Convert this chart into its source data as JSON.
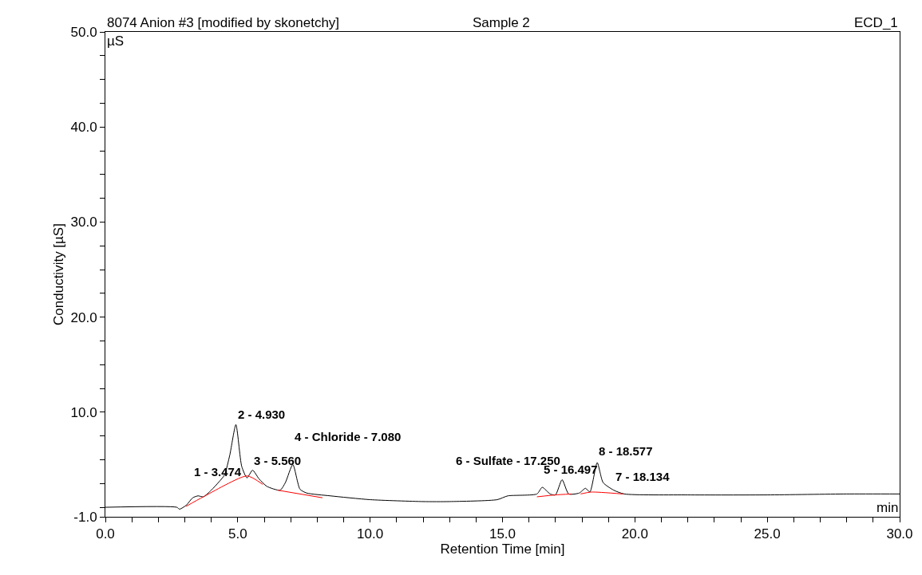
{
  "chart_data": {
    "type": "line",
    "title": "8074 Anion #3 [modified by skonetchy]",
    "subtitle": "Sample 2",
    "xlabel": "Retention Time [min]",
    "ylabel": "Conductivity [µS]",
    "x": [
      0,
      2.7,
      2.8,
      3.05,
      3.3,
      3.5,
      3.7,
      4.0,
      4.3,
      4.5,
      4.7,
      4.93,
      5.15,
      5.35,
      5.56,
      5.8,
      6.1,
      6.6,
      6.8,
      7.08,
      7.35,
      7.6,
      8.5,
      10,
      12,
      13,
      14.8,
      15.2,
      16.3,
      16.5,
      16.8,
      17.0,
      17.25,
      17.5,
      17.9,
      18.134,
      18.3,
      18.577,
      18.8,
      19.2,
      19.6,
      22,
      25,
      28,
      30
    ],
    "series": [
      {
        "color": "#000000",
        "values": [
          0,
          0,
          -0.2,
          0.2,
          1.0,
          1.2,
          1.1,
          1.8,
          2.7,
          3.4,
          5.5,
          8.7,
          4.3,
          3.1,
          3.9,
          3.0,
          2.2,
          1.8,
          2.6,
          4.5,
          1.9,
          1.5,
          1.2,
          0.8,
          0.6,
          0.6,
          0.8,
          1.2,
          1.4,
          2.1,
          1.4,
          1.3,
          2.9,
          1.4,
          1.5,
          2.0,
          1.6,
          4.7,
          2.6,
          1.8,
          1.4,
          1.3,
          1.3,
          1.4,
          1.4
        ]
      },
      {
        "color": "#ff0000",
        "x": [
          3.05,
          3.7,
          5.35,
          5.95,
          6.2,
          6.5,
          8.2,
          12,
          16.3,
          17.0,
          17.6,
          17.8,
          17.95,
          18.35,
          19.55
        ],
        "values": [
          0.1,
          1.1,
          3.3,
          2.4,
          null,
          1.8,
          1.0,
          null,
          1.1,
          1.3,
          1.4,
          null,
          1.4,
          1.6,
          1.4
        ]
      }
    ],
    "xlim": [
      0,
      30
    ],
    "ylim": [
      -1,
      50
    ],
    "xticks": [
      {
        "value": 0,
        "label": "0.0"
      },
      {
        "value": 1,
        "label": null
      },
      {
        "value": 2,
        "label": null
      },
      {
        "value": 3,
        "label": null
      },
      {
        "value": 4,
        "label": null
      },
      {
        "value": 5,
        "label": "5.0"
      },
      {
        "value": 6,
        "label": null
      },
      {
        "value": 7,
        "label": null
      },
      {
        "value": 8,
        "label": null
      },
      {
        "value": 9,
        "label": null
      },
      {
        "value": 10,
        "label": "10.0"
      },
      {
        "value": 11,
        "label": null
      },
      {
        "value": 12,
        "label": null
      },
      {
        "value": 13,
        "label": null
      },
      {
        "value": 14,
        "label": null
      },
      {
        "value": 15,
        "label": "15.0"
      },
      {
        "value": 16,
        "label": null
      },
      {
        "value": 17,
        "label": null
      },
      {
        "value": 18,
        "label": null
      },
      {
        "value": 19,
        "label": null
      },
      {
        "value": 20,
        "label": "20.0"
      },
      {
        "value": 21,
        "label": null
      },
      {
        "value": 22,
        "label": null
      },
      {
        "value": 23,
        "label": null
      },
      {
        "value": 24,
        "label": null
      },
      {
        "value": 25,
        "label": "25.0"
      },
      {
        "value": 26,
        "label": null
      },
      {
        "value": 27,
        "label": null
      },
      {
        "value": 28,
        "label": null
      },
      {
        "value": 29,
        "label": null
      },
      {
        "value": 30,
        "label": "30.0"
      }
    ],
    "yticks": [
      {
        "value": -1,
        "label": "-1.0"
      },
      {
        "value": 0,
        "label": null
      },
      {
        "value": 2.5,
        "label": null
      },
      {
        "value": 5,
        "label": null
      },
      {
        "value": 7.5,
        "label": null
      },
      {
        "value": 10,
        "label": "10.0"
      },
      {
        "value": 12.5,
        "label": null
      },
      {
        "value": 15,
        "label": null
      },
      {
        "value": 17.5,
        "label": null
      },
      {
        "value": 20,
        "label": "20.0"
      },
      {
        "value": 22.5,
        "label": null
      },
      {
        "value": 25,
        "label": null
      },
      {
        "value": 27.5,
        "label": null
      },
      {
        "value": 30,
        "label": "30.0"
      },
      {
        "value": 32.5,
        "label": null
      },
      {
        "value": 35,
        "label": null
      },
      {
        "value": 37.5,
        "label": null
      },
      {
        "value": 40,
        "label": "40.0"
      },
      {
        "value": 42.5,
        "label": null
      },
      {
        "value": 45,
        "label": null
      },
      {
        "value": 47.5,
        "label": null
      },
      {
        "value": 50,
        "label": "50.0"
      }
    ],
    "annotations": [
      "ECD_1",
      "µS",
      "min",
      {
        "text": "1 - 3.474",
        "x": 3.474,
        "y": 1.2
      },
      {
        "text": "2 - 4.930",
        "x": 4.93,
        "y": 8.7
      },
      {
        "text": "3 - 5.560",
        "x": 5.56,
        "y": 3.9
      },
      {
        "text": "4 - Chloride - 7.080",
        "x": 7.08,
        "y": 4.5
      },
      {
        "text": "5 - 16.497",
        "x": 16.497,
        "y": 2.1
      },
      {
        "text": "6 - Sulfate - 17.250",
        "x": 17.25,
        "y": 2.9
      },
      {
        "text": "7 - 18.134",
        "x": 18.134,
        "y": 2.0
      },
      {
        "text": "8 - 18.577",
        "x": 18.577,
        "y": 4.7
      }
    ],
    "marker": "none",
    "line_style": "solid"
  }
}
